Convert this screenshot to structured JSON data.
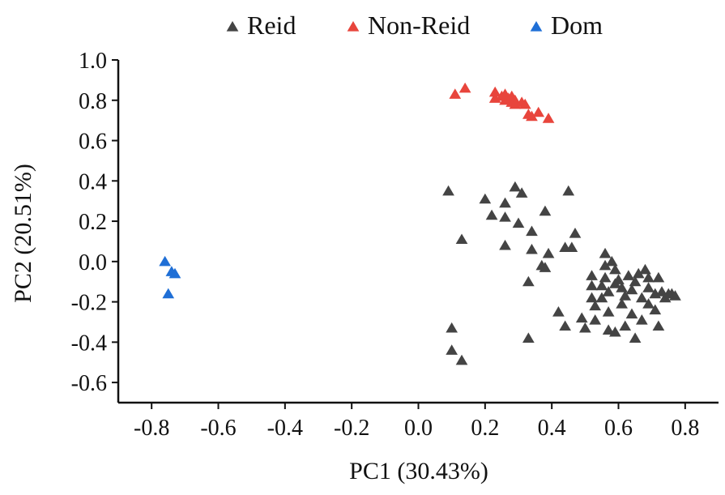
{
  "chart_data": {
    "type": "scatter",
    "xlabel": "PC1 (30.43%)",
    "ylabel": "PC2 (20.51%)",
    "xlim": [
      -0.9,
      0.9
    ],
    "ylim": [
      -0.7,
      1.0
    ],
    "xticks": [
      "-0.8",
      "-0.6",
      "-0.4",
      "-0.2",
      "0.0",
      "0.2",
      "0.4",
      "0.6",
      "0.8"
    ],
    "yticks": [
      "1.0",
      "0.8",
      "0.6",
      "0.4",
      "0.2",
      "0.0",
      "-0.2",
      "-0.4",
      "-0.6"
    ],
    "grid": false,
    "legend_position": "top",
    "series": [
      {
        "name": "Reid",
        "color": "#444444",
        "marker": "triangle",
        "points": [
          [
            0.09,
            0.35
          ],
          [
            0.13,
            0.11
          ],
          [
            0.1,
            -0.33
          ],
          [
            0.1,
            -0.44
          ],
          [
            0.13,
            -0.49
          ],
          [
            0.2,
            0.31
          ],
          [
            0.22,
            0.23
          ],
          [
            0.26,
            0.29
          ],
          [
            0.26,
            0.22
          ],
          [
            0.26,
            0.08
          ],
          [
            0.29,
            0.37
          ],
          [
            0.31,
            0.34
          ],
          [
            0.3,
            0.19
          ],
          [
            0.33,
            -0.1
          ],
          [
            0.33,
            -0.38
          ],
          [
            0.34,
            0.15
          ],
          [
            0.34,
            0.06
          ],
          [
            0.38,
            0.25
          ],
          [
            0.37,
            -0.02
          ],
          [
            0.38,
            -0.03
          ],
          [
            0.39,
            0.04
          ],
          [
            0.42,
            -0.25
          ],
          [
            0.44,
            -0.32
          ],
          [
            0.44,
            0.07
          ],
          [
            0.45,
            0.35
          ],
          [
            0.46,
            0.07
          ],
          [
            0.47,
            0.14
          ],
          [
            0.49,
            -0.28
          ],
          [
            0.5,
            -0.33
          ],
          [
            0.52,
            -0.07
          ],
          [
            0.52,
            -0.12
          ],
          [
            0.52,
            -0.18
          ],
          [
            0.53,
            -0.22
          ],
          [
            0.53,
            -0.29
          ],
          [
            0.55,
            -0.18
          ],
          [
            0.55,
            -0.12
          ],
          [
            0.56,
            0.04
          ],
          [
            0.56,
            -0.02
          ],
          [
            0.56,
            -0.08
          ],
          [
            0.57,
            -0.15
          ],
          [
            0.57,
            -0.25
          ],
          [
            0.57,
            -0.34
          ],
          [
            0.58,
            0.0
          ],
          [
            0.59,
            -0.11
          ],
          [
            0.59,
            -0.35
          ],
          [
            0.59,
            -0.04
          ],
          [
            0.6,
            -0.09
          ],
          [
            0.61,
            -0.13
          ],
          [
            0.61,
            -0.21
          ],
          [
            0.62,
            -0.17
          ],
          [
            0.62,
            -0.32
          ],
          [
            0.63,
            -0.07
          ],
          [
            0.64,
            -0.26
          ],
          [
            0.64,
            -0.14
          ],
          [
            0.65,
            -0.38
          ],
          [
            0.65,
            -0.1
          ],
          [
            0.66,
            -0.06
          ],
          [
            0.67,
            -0.18
          ],
          [
            0.67,
            -0.29
          ],
          [
            0.68,
            -0.04
          ],
          [
            0.69,
            -0.08
          ],
          [
            0.69,
            -0.13
          ],
          [
            0.69,
            -0.21
          ],
          [
            0.71,
            -0.16
          ],
          [
            0.71,
            -0.24
          ],
          [
            0.72,
            -0.08
          ],
          [
            0.72,
            -0.32
          ],
          [
            0.73,
            -0.15
          ],
          [
            0.74,
            -0.18
          ],
          [
            0.75,
            -0.16
          ],
          [
            0.76,
            -0.16
          ],
          [
            0.77,
            -0.17
          ]
        ]
      },
      {
        "name": "Non-Reid",
        "color": "#e8453c",
        "marker": "triangle",
        "points": [
          [
            0.11,
            0.83
          ],
          [
            0.14,
            0.86
          ],
          [
            0.23,
            0.81
          ],
          [
            0.23,
            0.84
          ],
          [
            0.25,
            0.82
          ],
          [
            0.26,
            0.8
          ],
          [
            0.26,
            0.83
          ],
          [
            0.27,
            0.81
          ],
          [
            0.28,
            0.82
          ],
          [
            0.28,
            0.79
          ],
          [
            0.29,
            0.8
          ],
          [
            0.29,
            0.78
          ],
          [
            0.31,
            0.79
          ],
          [
            0.32,
            0.78
          ],
          [
            0.33,
            0.73
          ],
          [
            0.34,
            0.72
          ],
          [
            0.36,
            0.74
          ],
          [
            0.39,
            0.71
          ]
        ]
      },
      {
        "name": "Dom",
        "color": "#1f6fd6",
        "marker": "triangle",
        "points": [
          [
            -0.76,
            0.0
          ],
          [
            -0.75,
            -0.16
          ],
          [
            -0.74,
            -0.05
          ],
          [
            -0.73,
            -0.06
          ]
        ]
      }
    ]
  }
}
